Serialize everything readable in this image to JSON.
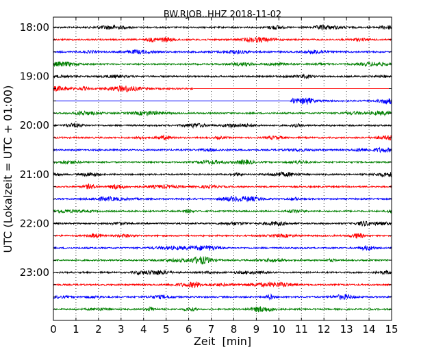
{
  "chart_data": {
    "type": "line",
    "title": "BW.RJOB..HHZ 2018-11-02",
    "xlabel": "Zeit  [min]",
    "ylabel": "UTC (Lokalzeit = UTC + 01:00)",
    "xlim": [
      0,
      15
    ],
    "x_ticks": [
      "0",
      "1",
      "2",
      "3",
      "4",
      "5",
      "6",
      "7",
      "8",
      "9",
      "10",
      "11",
      "12",
      "13",
      "14",
      "15"
    ],
    "y_ticks": [
      "18:00",
      "19:00",
      "20:00",
      "21:00",
      "22:00",
      "23:00"
    ],
    "grid": "vertical dotted",
    "traces": [
      {
        "start": "18:00",
        "color": "#000000",
        "from_min": 0,
        "to_min": 15
      },
      {
        "start": "18:15",
        "color": "#ff0000",
        "from_min": 0,
        "to_min": 15
      },
      {
        "start": "18:30",
        "color": "#0000ff",
        "from_min": 0,
        "to_min": 15
      },
      {
        "start": "18:45",
        "color": "#008000",
        "from_min": 0,
        "to_min": 15
      },
      {
        "start": "19:00",
        "color": "#000000",
        "from_min": 0,
        "to_min": 15
      },
      {
        "start": "19:15",
        "color": "#ff0000",
        "from_min": 0,
        "to_min": 6.2
      },
      {
        "start": "19:30",
        "color": "#0000ff",
        "from_min": 10.5,
        "to_min": 15
      },
      {
        "start": "19:45",
        "color": "#008000",
        "from_min": 0,
        "to_min": 15
      },
      {
        "start": "20:00",
        "color": "#000000",
        "from_min": 0,
        "to_min": 15
      },
      {
        "start": "20:15",
        "color": "#ff0000",
        "from_min": 0,
        "to_min": 15
      },
      {
        "start": "20:30",
        "color": "#0000ff",
        "from_min": 0,
        "to_min": 15
      },
      {
        "start": "20:45",
        "color": "#008000",
        "from_min": 0,
        "to_min": 15
      },
      {
        "start": "21:00",
        "color": "#000000",
        "from_min": 0,
        "to_min": 15
      },
      {
        "start": "21:15",
        "color": "#ff0000",
        "from_min": 0,
        "to_min": 15
      },
      {
        "start": "21:30",
        "color": "#0000ff",
        "from_min": 0,
        "to_min": 15
      },
      {
        "start": "21:45",
        "color": "#008000",
        "from_min": 0,
        "to_min": 15
      },
      {
        "start": "22:00",
        "color": "#000000",
        "from_min": 0,
        "to_min": 15
      },
      {
        "start": "22:15",
        "color": "#ff0000",
        "from_min": 0,
        "to_min": 15
      },
      {
        "start": "22:30",
        "color": "#0000ff",
        "from_min": 0,
        "to_min": 15
      },
      {
        "start": "22:45",
        "color": "#008000",
        "from_min": 0,
        "to_min": 15
      },
      {
        "start": "23:00",
        "color": "#000000",
        "from_min": 0,
        "to_min": 15
      },
      {
        "start": "23:15",
        "color": "#ff0000",
        "from_min": 0,
        "to_min": 15
      },
      {
        "start": "23:30",
        "color": "#0000ff",
        "from_min": 0,
        "to_min": 15
      },
      {
        "start": "23:45",
        "color": "#008000",
        "from_min": 0,
        "to_min": 15
      }
    ]
  }
}
